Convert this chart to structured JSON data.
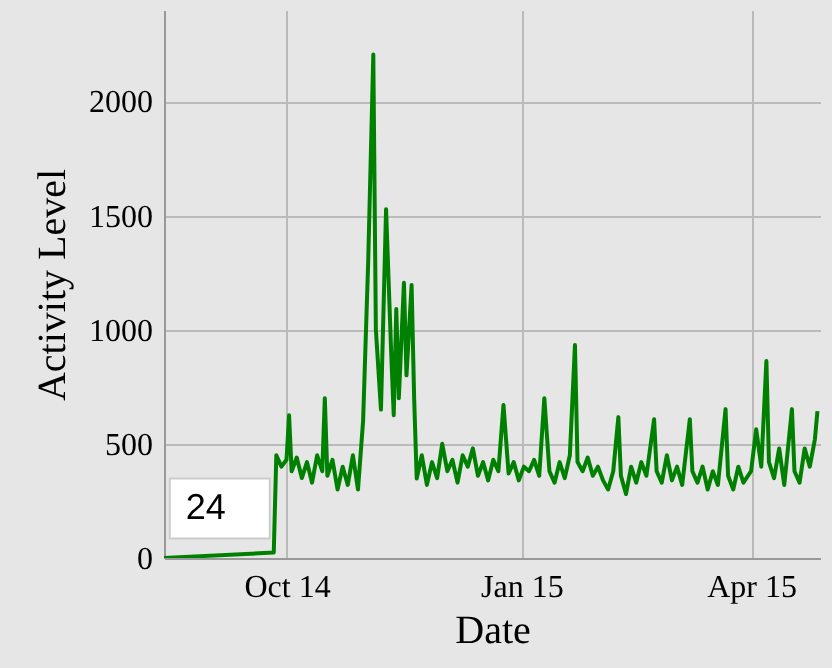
{
  "chart_data": {
    "type": "line",
    "xlabel": "Date",
    "ylabel": "Activity Level",
    "x": [
      "2014-08-14",
      "2014-09-26",
      "2014-09-27",
      "2014-09-29",
      "2014-10-01",
      "2014-10-02",
      "2014-10-03",
      "2014-10-05",
      "2014-10-07",
      "2014-10-09",
      "2014-10-11",
      "2014-10-13",
      "2014-10-15",
      "2014-10-16",
      "2014-10-17",
      "2014-10-19",
      "2014-10-21",
      "2014-10-23",
      "2014-10-25",
      "2014-10-27",
      "2014-10-29",
      "2014-10-31",
      "2014-11-02",
      "2014-11-04",
      "2014-11-05",
      "2014-11-07",
      "2014-11-09",
      "2014-11-11",
      "2014-11-12",
      "2014-11-13",
      "2014-11-14",
      "2014-11-16",
      "2014-11-17",
      "2014-11-19",
      "2014-11-20",
      "2014-11-21",
      "2014-11-23",
      "2014-11-25",
      "2014-11-27",
      "2014-11-29",
      "2014-12-01",
      "2014-12-03",
      "2014-12-05",
      "2014-12-07",
      "2014-12-09",
      "2014-12-11",
      "2014-12-13",
      "2014-12-15",
      "2014-12-17",
      "2014-12-19",
      "2014-12-21",
      "2014-12-23",
      "2014-12-25",
      "2014-12-27",
      "2014-12-29",
      "2014-12-31",
      "2015-01-02",
      "2015-01-04",
      "2015-01-06",
      "2015-01-08",
      "2015-01-10",
      "2015-01-12",
      "2015-01-14",
      "2015-01-16",
      "2015-01-18",
      "2015-01-20",
      "2015-01-22",
      "2015-01-23",
      "2015-01-25",
      "2015-01-27",
      "2015-01-29",
      "2015-01-31",
      "2015-02-02",
      "2015-02-04",
      "2015-02-06",
      "2015-02-08",
      "2015-02-09",
      "2015-02-11",
      "2015-02-13",
      "2015-02-15",
      "2015-02-17",
      "2015-02-19",
      "2015-02-22",
      "2015-02-23",
      "2015-02-25",
      "2015-02-27",
      "2015-03-01",
      "2015-03-03",
      "2015-03-05",
      "2015-03-08",
      "2015-03-09",
      "2015-03-11",
      "2015-03-13",
      "2015-03-15",
      "2015-03-17",
      "2015-03-19",
      "2015-03-22",
      "2015-03-23",
      "2015-03-25",
      "2015-03-27",
      "2015-03-29",
      "2015-04-01",
      "2015-04-03",
      "2015-04-05",
      "2015-04-07",
      "2015-04-08",
      "2015-04-10",
      "2015-04-12",
      "2015-04-14",
      "2015-04-17",
      "2015-04-18",
      "2015-04-20",
      "2015-04-22",
      "2015-04-24",
      "2015-04-26",
      "2015-04-27"
    ],
    "series": [
      {
        "color": "#008000",
        "values": [
          0,
          24,
          450,
          400,
          430,
          625,
          380,
          440,
          350,
          420,
          330,
          450,
          380,
          700,
          360,
          430,
          300,
          400,
          320,
          450,
          300,
          600,
          1300,
          2205,
          1000,
          650,
          1527,
          900,
          625,
          1090,
          700,
          1205,
          800,
          1196,
          700,
          348,
          450,
          320,
          420,
          350,
          500,
          380,
          430,
          330,
          450,
          400,
          480,
          360,
          420,
          340,
          430,
          380,
          670,
          370,
          420,
          340,
          400,
          380,
          430,
          360,
          700,
          380,
          330,
          420,
          350,
          450,
          933,
          420,
          380,
          440,
          360,
          400,
          340,
          300,
          380,
          617,
          360,
          280,
          400,
          330,
          420,
          360,
          608,
          380,
          330,
          450,
          340,
          400,
          320,
          608,
          380,
          330,
          400,
          300,
          380,
          320,
          652,
          360,
          300,
          400,
          330,
          380,
          564,
          400,
          863,
          420,
          350,
          480,
          320,
          652,
          380,
          330,
          480,
          400,
          520,
          643
        ]
      }
    ],
    "xlim": [
      "2014-08-14",
      "2015-04-28"
    ],
    "xticks": [
      {
        "value": "2014-10-01",
        "label": "Oct 14"
      },
      {
        "value": "2015-01-01",
        "label": "Jan 15"
      },
      {
        "value": "2015-04-01",
        "label": "Apr 15"
      }
    ],
    "ylim": [
      0,
      2400
    ],
    "yticks": [
      0,
      500,
      1000,
      1500,
      2000
    ],
    "grid": true,
    "annotations": [
      {
        "text": "24",
        "x": "2014-09-26",
        "y": 24
      }
    ]
  }
}
